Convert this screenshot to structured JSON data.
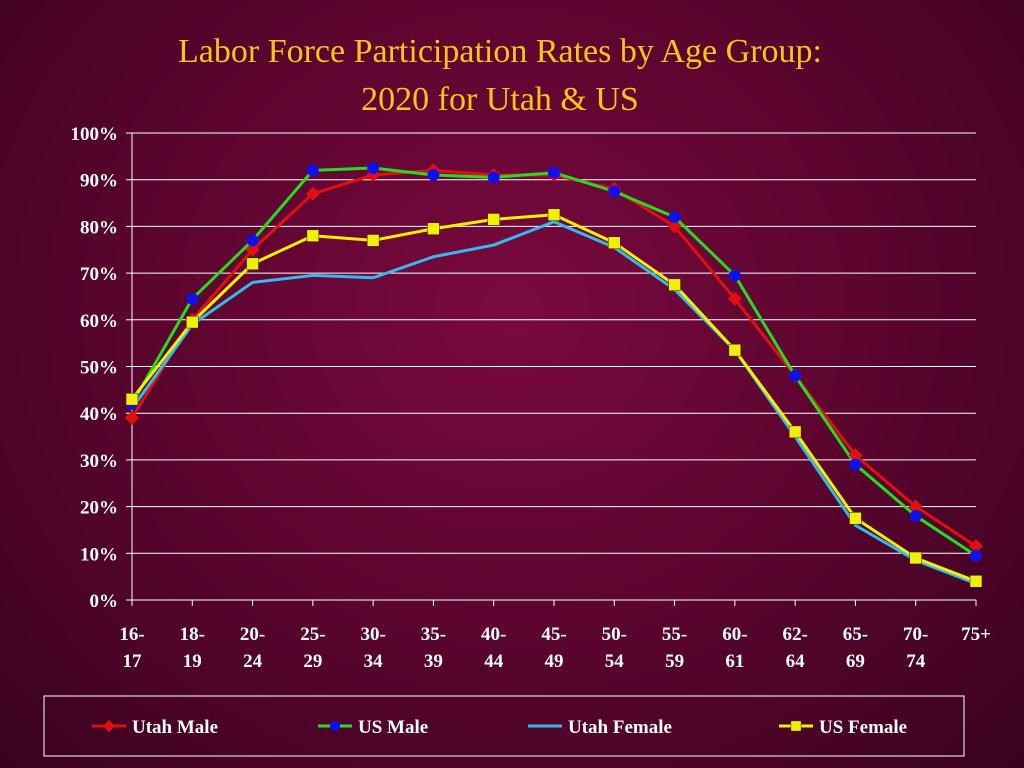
{
  "chart_data": {
    "type": "line",
    "title_line1": "Labor Force Participation Rates by Age Group:",
    "title_line2": "2020 for Utah & US",
    "categories": [
      [
        "16-",
        "17"
      ],
      [
        "18-",
        "19"
      ],
      [
        "20-",
        "24"
      ],
      [
        "25-",
        "29"
      ],
      [
        "30-",
        "34"
      ],
      [
        "35-",
        "39"
      ],
      [
        "40-",
        "44"
      ],
      [
        "45-",
        "49"
      ],
      [
        "50-",
        "54"
      ],
      [
        "55-",
        "59"
      ],
      [
        "60-",
        "61"
      ],
      [
        "62-",
        "64"
      ],
      [
        "65-",
        "69"
      ],
      [
        "70-",
        "74"
      ],
      [
        "75+",
        ""
      ]
    ],
    "ylim": [
      0,
      100
    ],
    "yticks": [
      0,
      10,
      20,
      30,
      40,
      50,
      60,
      70,
      80,
      90,
      100
    ],
    "ytick_labels": [
      "0%",
      "10%",
      "20%",
      "30%",
      "40%",
      "50%",
      "60%",
      "70%",
      "80%",
      "90%",
      "100%"
    ],
    "grid": true,
    "legend_position": "bottom",
    "series": [
      {
        "name": "Utah Male",
        "color": "#e01010",
        "marker": "diamond",
        "values": [
          39.0,
          60.0,
          75.0,
          87.0,
          91.0,
          92.0,
          91.0,
          91.0,
          88.0,
          80.0,
          64.5,
          48.0,
          31.0,
          20.0,
          11.5
        ]
      },
      {
        "name": "US Male",
        "color": "#22dd22",
        "marker": "circle",
        "marker_color": "#1010ee",
        "values": [
          42.0,
          64.5,
          77.0,
          92.0,
          92.5,
          91.0,
          90.5,
          91.5,
          87.5,
          82.0,
          69.5,
          48.0,
          29.0,
          18.0,
          9.5
        ]
      },
      {
        "name": "Utah Female",
        "color": "#33bbee",
        "marker": "none",
        "values": [
          41.0,
          59.0,
          68.0,
          69.5,
          69.0,
          73.5,
          76.0,
          81.0,
          75.5,
          66.5,
          53.5,
          35.0,
          16.0,
          8.5,
          3.5
        ]
      },
      {
        "name": "US Female",
        "color": "#f0f000",
        "marker": "square",
        "values": [
          43.0,
          59.5,
          72.0,
          78.0,
          77.0,
          79.5,
          81.5,
          82.5,
          76.5,
          67.5,
          53.5,
          36.0,
          17.5,
          9.0,
          4.0
        ]
      }
    ]
  }
}
